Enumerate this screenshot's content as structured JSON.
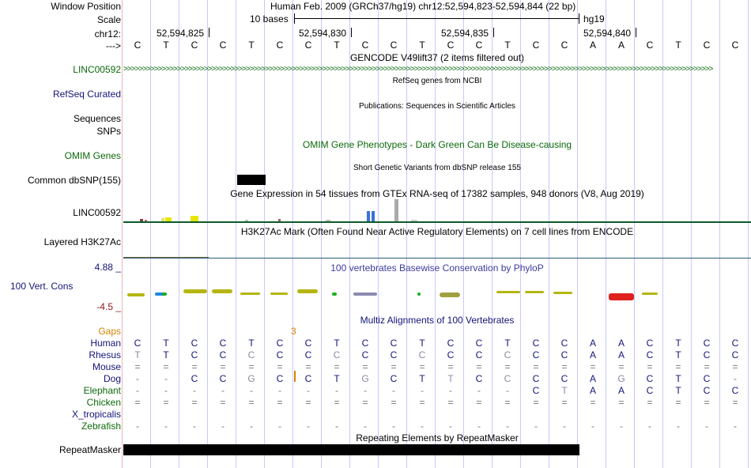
{
  "header": {
    "window_position_label": "Window Position",
    "assembly_text": "Human Feb. 2009 (GRCh37/hg19)   chr12:52,594,823-52,594,844 (22 bp)",
    "scale_label": "Scale",
    "scale_text": "10 bases",
    "scale_db": "hg19",
    "chrom_label": "chr12:",
    "coords": [
      "52,594,825",
      "52,594,830",
      "52,594,835",
      "52,594,840"
    ],
    "strand_label": "--->"
  },
  "sequence": [
    "C",
    "T",
    "C",
    "C",
    "T",
    "C",
    "C",
    "T",
    "C",
    "C",
    "T",
    "C",
    "C",
    "T",
    "C",
    "C",
    "A",
    "A",
    "C",
    "T",
    "C",
    "C"
  ],
  "tracks": {
    "gencode": {
      "title": "GENCODE V49lift37 (2 items filtered out)",
      "gene_label": "LINC00592"
    },
    "refseq": {
      "title": "RefSeq genes from NCBI",
      "label": "RefSeq Curated"
    },
    "publications": {
      "title": "Publications: Sequences in Scientific Articles",
      "label1": "Sequences",
      "label2": "SNPs"
    },
    "omim": {
      "title": "OMIM Gene Phenotypes - Dark Green Can Be Disease-causing",
      "label": "OMIM Genes"
    },
    "dbsnp": {
      "title": "Short Genetic Variants from dbSNP release 155",
      "label": "Common dbSNP(155)"
    },
    "gtex": {
      "title": "Gene Expression in 54 tissues from GTEx RNA-seq of 17382 samples, 948 donors (V8, Aug 2019)",
      "label": "LINC00592"
    },
    "h3k27ac": {
      "title": "H3K27Ac Mark (Often Found Near Active Regulatory Elements) on 7 cell lines from ENCODE",
      "label": "Layered H3K27Ac"
    },
    "conservation": {
      "title": "100 vertebrates Basewise Conservation by PhyloP",
      "label": "100 Vert. Cons",
      "max": "4.88 _",
      "min": "-4.5 _"
    },
    "multiz": {
      "title": "Multiz Alignments of 100 Vertebrates",
      "gaps_label": "Gaps",
      "gap_count": "3",
      "species": [
        {
          "name": "Human",
          "bases": [
            "C",
            "T",
            "C",
            "C",
            "T",
            "C",
            "C",
            "T",
            "C",
            "C",
            "T",
            "C",
            "C",
            "T",
            "C",
            "C",
            "A",
            "A",
            "C",
            "T",
            "C",
            "C"
          ]
        },
        {
          "name": "Rhesus",
          "bases": [
            "T",
            "T",
            "C",
            "C",
            "C",
            "C",
            "C",
            "C",
            "C",
            "C",
            "C",
            "C",
            "C",
            "C",
            "C",
            "C",
            "A",
            "A",
            "C",
            "T",
            "C",
            "C"
          ]
        },
        {
          "name": "Mouse",
          "bases": [
            "=",
            "=",
            "=",
            "=",
            "=",
            "=",
            "=",
            "=",
            "=",
            "=",
            "=",
            "=",
            "=",
            "=",
            "=",
            "=",
            "=",
            "=",
            "=",
            "=",
            "=",
            "="
          ]
        },
        {
          "name": "Dog",
          "bases": [
            "-",
            "-",
            "C",
            "C",
            "G",
            "C",
            "C",
            "T",
            "G",
            "C",
            "T",
            "T",
            "C",
            "C",
            "C",
            "C",
            "A",
            "G",
            "C",
            "T",
            "C",
            "-"
          ]
        },
        {
          "name": "Elephant",
          "bases": [
            "-",
            "-",
            "-",
            "-",
            "-",
            "-",
            "-",
            "-",
            "-",
            "-",
            "-",
            "-",
            "-",
            "-",
            "C",
            "T",
            "A",
            "A",
            "C",
            "T",
            "C",
            "C"
          ]
        },
        {
          "name": "Chicken",
          "bases": [
            "=",
            "=",
            "=",
            "=",
            "=",
            "=",
            "=",
            "=",
            "=",
            "=",
            "=",
            "=",
            "=",
            "=",
            "=",
            "=",
            "=",
            "=",
            "=",
            "=",
            "=",
            "="
          ]
        },
        {
          "name": "X_tropicalis",
          "bases": [
            "",
            "",
            "",
            "",
            "",
            "",
            "",
            "",
            "",
            "",
            "",
            "",
            "",
            "",
            "",
            "",
            "",
            "",
            "",
            "",
            "",
            ""
          ]
        },
        {
          "name": "Zebrafish",
          "bases": [
            "-",
            "-",
            "-",
            "-",
            "-",
            "-",
            "-",
            "-",
            "-",
            "-",
            "-",
            "-",
            "-",
            "-",
            "-",
            "-",
            "-",
            "-",
            "-",
            "-",
            "-",
            "-"
          ]
        }
      ]
    },
    "repeatmasker": {
      "title": "Repeating Elements by RepeatMasker",
      "label": "RepeatMasker"
    }
  },
  "colors": {
    "green": "#0b6a0b",
    "navy": "#14147a",
    "blue": "#3c3c9e",
    "orange": "#d98200",
    "maroon": "#8b1a1a"
  }
}
